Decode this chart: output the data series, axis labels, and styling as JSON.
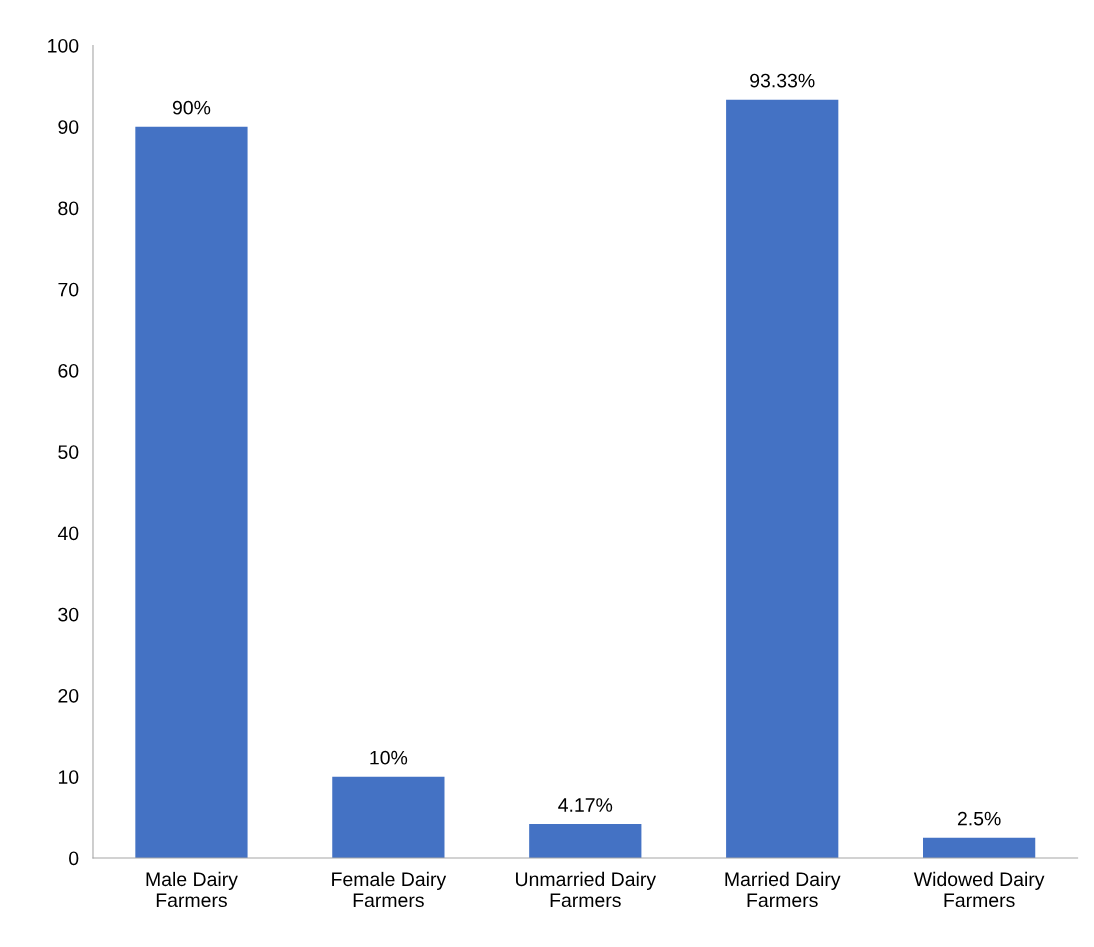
{
  "chart_data": {
    "type": "bar",
    "categories": [
      "Male Dairy Farmers",
      "Female Dairy Farmers",
      "Unmarried Dairy Farmers",
      "Married Dairy Farmers",
      "Widowed Dairy Farmers"
    ],
    "values": [
      90,
      10,
      4.17,
      93.33,
      2.5
    ],
    "value_labels": [
      "90%",
      "10%",
      "4.17%",
      "93.33%",
      "2.5%"
    ],
    "color": "#4472c4",
    "ylim": [
      0,
      100
    ],
    "yticks": [
      0,
      10,
      20,
      30,
      40,
      50,
      60,
      70,
      80,
      90,
      100
    ],
    "grid": false,
    "legend": false
  }
}
